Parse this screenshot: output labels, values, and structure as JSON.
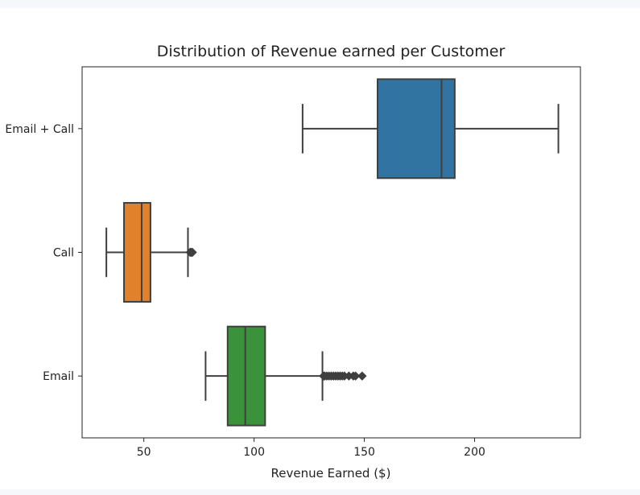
{
  "chart_data": {
    "type": "boxplot",
    "orientation": "horizontal",
    "title": "Distribution of Revenue earned per Customer",
    "xlabel": "Revenue Earned ($)",
    "ylabel": "",
    "xlim": [
      22,
      248
    ],
    "xticks": [
      50,
      100,
      150,
      200
    ],
    "grid": false,
    "categories": [
      "Email + Call",
      "Call",
      "Email"
    ],
    "series": [
      {
        "category": "Email + Call",
        "color": "#3274a1",
        "whisker_low": 122,
        "q1": 156,
        "median": 185,
        "q3": 191,
        "whisker_high": 238,
        "outliers": []
      },
      {
        "category": "Call",
        "color": "#e1812c",
        "whisker_low": 33,
        "q1": 41,
        "median": 49,
        "q3": 53,
        "whisker_high": 70,
        "outliers": [
          71,
          71.5,
          72
        ]
      },
      {
        "category": "Email",
        "color": "#3a923a",
        "whisker_low": 78,
        "q1": 88,
        "median": 96,
        "q3": 105,
        "whisker_high": 131,
        "outliers": [
          131.5,
          132,
          133,
          134,
          135,
          136,
          137,
          138,
          139,
          140,
          141,
          143,
          145,
          146,
          149
        ]
      }
    ]
  }
}
